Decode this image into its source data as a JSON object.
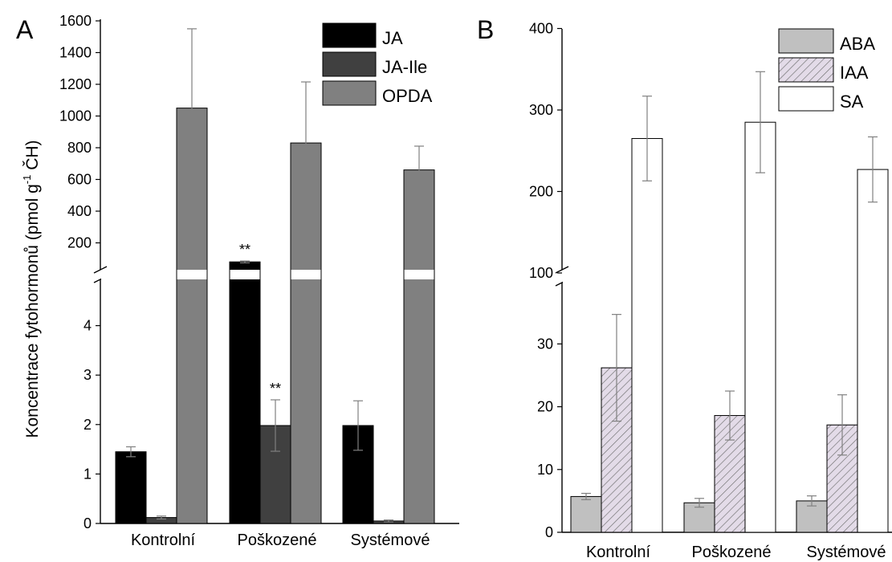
{
  "colors": {
    "JA": "#000000",
    "JA-Ile": "#404040",
    "OPDA": "#808080",
    "ABA": "#c0c0c0",
    "IAA": "#e3dbe8",
    "IAA_hatch": "#707070",
    "SA": "#ffffff",
    "axis": "#000000",
    "error": "#808080"
  },
  "chart_data": [
    {
      "type": "bar",
      "panel_label": "A",
      "ylabel": "Koncentrace fytohormonů (pmol g⁻¹ ČH)",
      "ylabel_main": "Koncentrace fytohormonů (pmol g",
      "ylabel_sup": "-1",
      "ylabel_end": " ČH)",
      "categories": [
        "Kontrolní",
        "Poškozené",
        "Systémové"
      ],
      "axis_break": true,
      "ylim_lower": [
        0,
        5
      ],
      "ylim_upper": [
        0,
        1600
      ],
      "yticks_lower": [
        "0",
        "1",
        "2",
        "3",
        "4"
      ],
      "yticks_upper": [
        "200",
        "400",
        "600",
        "800",
        "1000",
        "1200",
        "1400",
        "1600"
      ],
      "legend_position": "top-right",
      "series": [
        {
          "name": "JA",
          "values": [
            1.45,
            80,
            1.98
          ],
          "errors": [
            0.1,
            6,
            0.5
          ]
        },
        {
          "name": "JA-Ile",
          "values": [
            0.12,
            1.98,
            0.05
          ],
          "errors": [
            0.03,
            0.52,
            0.02
          ]
        },
        {
          "name": "OPDA",
          "values": [
            1050,
            830,
            660
          ],
          "errors": [
            500,
            385,
            150
          ]
        }
      ],
      "annotations": [
        {
          "text": "**",
          "series": "JA",
          "category": "Poškozené"
        },
        {
          "text": "**",
          "series": "JA-Ile",
          "category": "Poškozené"
        }
      ]
    },
    {
      "type": "bar",
      "panel_label": "B",
      "ylabel": "",
      "categories": [
        "Kontrolní",
        "Poškozené",
        "Systémové"
      ],
      "axis_break": true,
      "ylim_lower": [
        0,
        40
      ],
      "ylim_upper": [
        100,
        400
      ],
      "yticks_lower": [
        "0",
        "10",
        "20",
        "30"
      ],
      "yticks_upper": [
        "100",
        "200",
        "300",
        "400"
      ],
      "legend_position": "top-right",
      "series": [
        {
          "name": "ABA",
          "values": [
            5.7,
            4.7,
            5.0
          ],
          "errors": [
            0.5,
            0.7,
            0.8
          ]
        },
        {
          "name": "IAA",
          "values": [
            26.2,
            18.6,
            17.1
          ],
          "errors": [
            8.5,
            3.9,
            4.8
          ]
        },
        {
          "name": "SA",
          "values": [
            265,
            285,
            227
          ],
          "errors": [
            52,
            62,
            40
          ]
        }
      ]
    }
  ]
}
